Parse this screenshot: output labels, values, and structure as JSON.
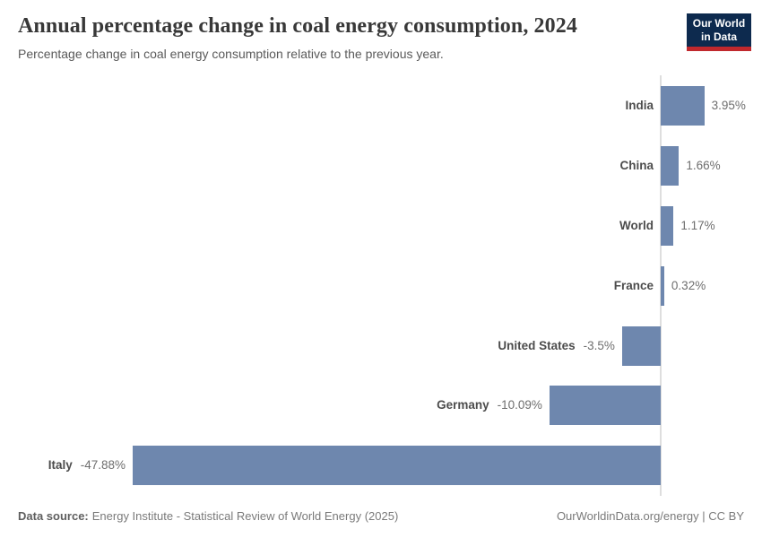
{
  "header": {
    "title": "Annual percentage change in coal energy consumption, 2024",
    "subtitle": "Percentage change in coal energy consumption relative to the previous year.",
    "logo": {
      "line1": "Our World",
      "line2": "in Data",
      "bg_color": "#0d2a4e",
      "accent_color": "#c0282d",
      "text_color": "#ffffff"
    }
  },
  "chart_data": {
    "type": "bar",
    "orientation": "horizontal",
    "title": "Annual percentage change in coal energy consumption, 2024",
    "categories": [
      "India",
      "China",
      "World",
      "France",
      "United States",
      "Germany",
      "Italy"
    ],
    "values": [
      3.95,
      1.66,
      1.17,
      0.32,
      -3.5,
      -10.09,
      -47.88
    ],
    "value_labels": [
      "3.95%",
      "1.66%",
      "1.17%",
      "0.32%",
      "-3.5%",
      "-10.09%",
      "-47.88%"
    ],
    "xlim": [
      -47.88,
      3.95
    ],
    "bar_color": "#6e87ae",
    "axis_line_color": "#dedede",
    "grid": false,
    "legend": "none"
  },
  "footer": {
    "source_label": "Data source:",
    "source_text": "Energy Institute - Statistical Review of World Energy (2025)",
    "credit_text": "OurWorldinData.org/energy | CC BY"
  }
}
